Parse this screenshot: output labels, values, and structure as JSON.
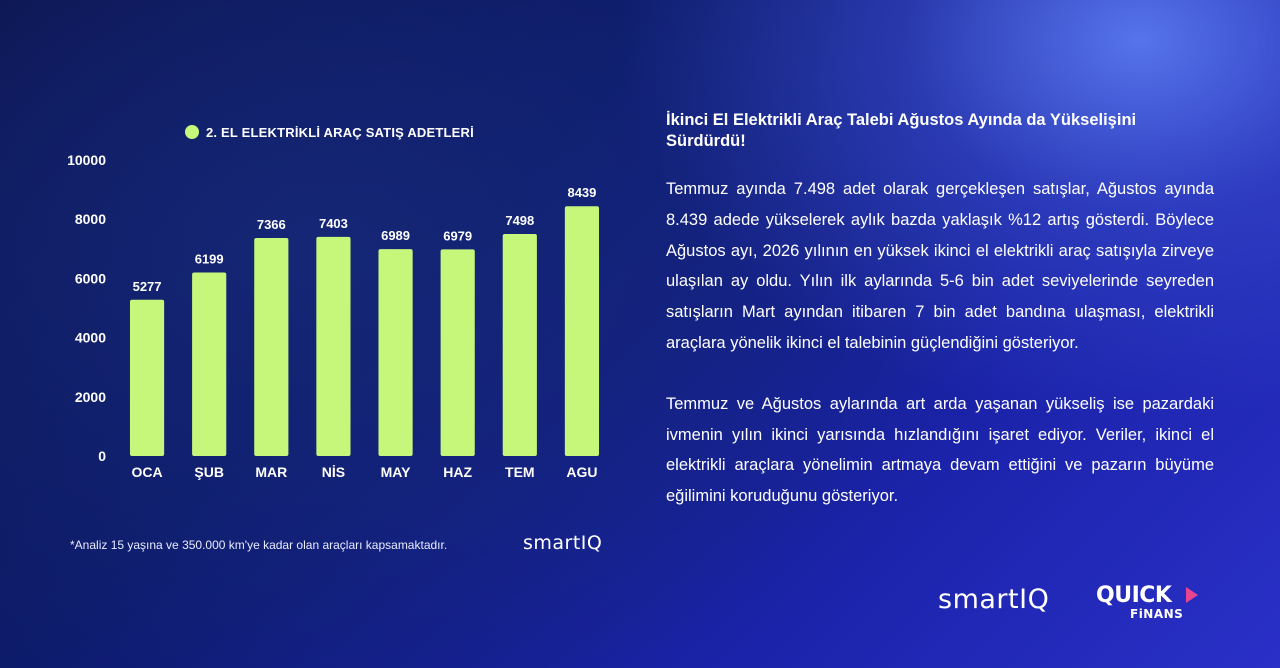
{
  "chart_data": {
    "type": "bar",
    "legend": "2. EL ELEKTRİKLİ ARAÇ SATIŞ ADETLERİ",
    "legend_placement": "top",
    "categories": [
      "OCA",
      "ŞUB",
      "MAR",
      "NİS",
      "MAY",
      "HAZ",
      "TEM",
      "AGU"
    ],
    "values": [
      5277,
      6199,
      7366,
      7403,
      6989,
      6979,
      7498,
      8439
    ],
    "ylim": [
      0,
      10000
    ],
    "yticks": [
      0,
      2000,
      4000,
      6000,
      8000,
      10000
    ],
    "grid": false,
    "bar_color": "#c6f77a"
  },
  "footnote": "*Analiz 15 yaşına ve 350.000 km'ye kadar olan araçları kapsamaktadır.",
  "brand_small": "smartIQ",
  "article": {
    "title": "İkinci El Elektrikli Araç Talebi Ağustos Ayında da Yükselişini Sürdürdü!",
    "paragraph1": "Temmuz ayında 7.498 adet olarak gerçekleşen satışlar, Ağustos ayında 8.439 adede yükselerek aylık bazda yaklaşık %12 artış gösterdi. Böylece Ağustos ayı, 2026 yılının en yüksek ikinci el elektrikli araç satışıyla zirveye ulaşılan ay oldu. Yılın ilk aylarında 5-6 bin adet seviyelerinde seyreden satışların Mart ayından itibaren 7 bin adet bandına ulaşması, elektrikli araçlara yönelik ikinci el talebinin güçlendiğini gösteriyor.",
    "paragraph2": "Temmuz ve Ağustos aylarında art arda yaşanan yükseliş ise pazardaki ivmenin yılın ikinci yarısında hızlandığını işaret ediyor. Veriler, ikinci el elektrikli araçlara yönelimin artmaya devam ettiğini ve pazarın büyüme eğilimini koruduğunu gösteriyor."
  },
  "logos": {
    "smartiq": "smartIQ",
    "quick_top": "QUICK",
    "quick_bottom": "FiNANS"
  }
}
